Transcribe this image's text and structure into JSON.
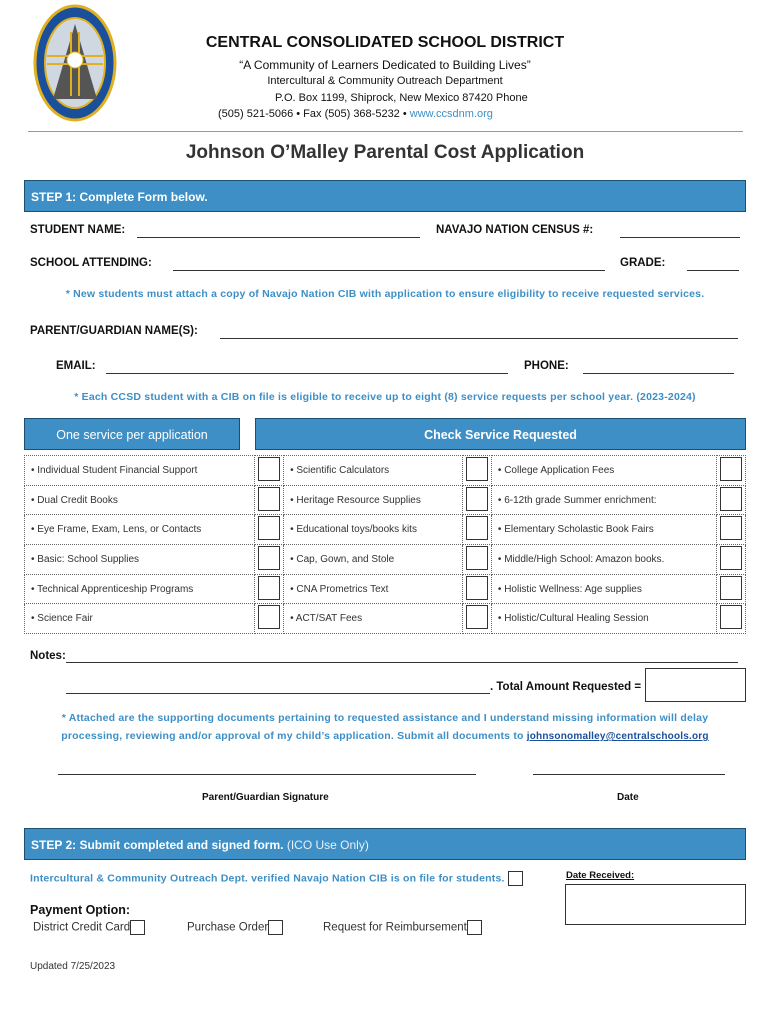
{
  "header": {
    "district": "CENTRAL CONSOLIDATED SCHOOL DISTRICT",
    "tagline": "“A Community of Learners Dedicated to Building Lives”",
    "department": "Intercultural & Community Outreach Department",
    "address": "P.O. Box 1199, Shiprock, New Mexico 87420 Phone",
    "contact": "(505) 521-5066 • Fax (505) 368-5232 • ",
    "website": "www.ccsdnm.org",
    "logo_text": "CENTRAL CONSOLIDATED SCHOOL DISTRICT"
  },
  "title": "Johnson O’Malley Parental Cost Application",
  "step1": {
    "label": "STEP 1: Complete Form below.",
    "student_name": "STUDENT NAME:",
    "census": "NAVAJO NATION CENSUS #:",
    "school": "SCHOOL ATTENDING:",
    "grade": "GRADE:",
    "note1": "* New students must attach a copy of Navajo Nation CIB with application to ensure eligibility to receive requested services.",
    "parent": "PARENT/GUARDIAN NAME(S):",
    "email": "EMAIL:",
    "phone": "PHONE:",
    "note2": "* Each CCSD student with a CIB on file is eligible to receive up to eight (8) service requests per school year. (2023-2024)"
  },
  "services": {
    "header_left": "One service per application",
    "header_right": "Check Service Requested",
    "rows": [
      [
        "• Individual Student Financial Support",
        "•  Scientific Calculators",
        "• College Application Fees"
      ],
      [
        "• Dual Credit Books",
        "• Heritage Resource Supplies",
        "•  6-12th grade Summer enrichment:"
      ],
      [
        "• Eye Frame, Exam, Lens, or Contacts",
        "• Educational toys/books kits",
        "• Elementary Scholastic Book Fairs"
      ],
      [
        "• Basic: School Supplies",
        "• Cap, Gown, and Stole",
        "• Middle/High School: Amazon books."
      ],
      [
        "• Technical Apprenticeship Programs",
        "• CNA Prometrics Text",
        "• Holistic Wellness: Age supplies"
      ],
      [
        "• Science Fair",
        "• ACT/SAT Fees",
        "• Holistic/Cultural Healing Session"
      ]
    ]
  },
  "notes": {
    "label": "Notes:",
    "total": ". Total Amount Requested ="
  },
  "attest": {
    "line1": "* Attached are the supporting documents pertaining to requested assistance and I understand missing information will delay",
    "line2": "processing, reviewing and/or approval of my child’s application. Submit all documents to ",
    "email": "johnsonomalley@centralschools.org"
  },
  "signature": {
    "sig_label": "Parent/Guardian Signature",
    "date_label": "Date"
  },
  "step2": {
    "label": "STEP 2: Submit completed and signed form.",
    "sub": "(ICO Use Only)",
    "verified": "Intercultural & Community Outreach Dept. verified Navajo Nation CIB is on file for students.",
    "date_received": "Date Received:",
    "payment": "Payment Option:",
    "options": [
      "District Credit Card",
      "Purchase Order",
      "Request for Reimbursement"
    ]
  },
  "footer": {
    "updated": "Updated 7/25/2023"
  },
  "colors": {
    "accent": "#3d8fc6"
  }
}
